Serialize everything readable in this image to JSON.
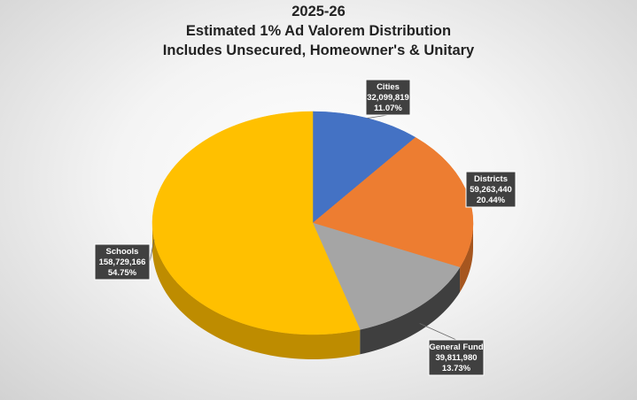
{
  "chart_data": {
    "type": "pie",
    "title": [
      "2025-26",
      "Estimated 1% Ad Valorem Distribution",
      "Includes Unsecured, Homeowner's & Unitary"
    ],
    "slices": [
      {
        "label": "Cities",
        "value": 32099819,
        "value_text": "32,099,819",
        "percent": 11.07,
        "percent_text": "11.07%",
        "color": "#4472C4",
        "side_color": "#2E4F8A"
      },
      {
        "label": "Districts",
        "value": 59263440,
        "value_text": "59,263,440",
        "percent": 20.44,
        "percent_text": "20.44%",
        "color": "#ED7D31",
        "side_color": "#A6561F"
      },
      {
        "label": "General Fund",
        "value": 39811980,
        "value_text": "39,811,980",
        "percent": 13.73,
        "percent_text": "13.73%",
        "color": "#A5A5A5",
        "side_color": "#3F3F3F"
      },
      {
        "label": "Schools",
        "value": 158729166,
        "value_text": "158,729,166",
        "percent": 54.75,
        "percent_text": "54.75%",
        "color": "#FFC000",
        "side_color": "#BE8C00"
      }
    ],
    "label_style": "callout",
    "legend": "none",
    "three_d": true
  }
}
